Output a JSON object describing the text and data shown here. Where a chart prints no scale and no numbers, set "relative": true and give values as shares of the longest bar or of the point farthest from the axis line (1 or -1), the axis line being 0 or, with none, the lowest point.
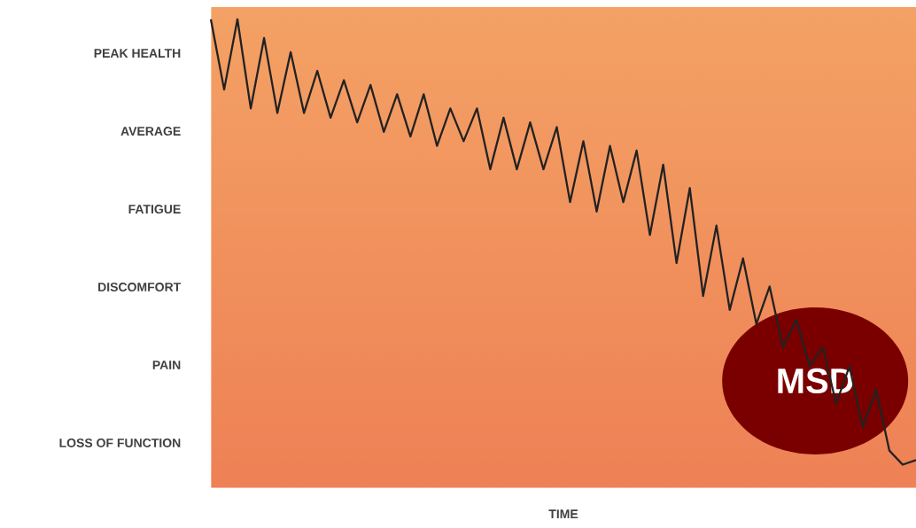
{
  "chart_data": {
    "type": "line",
    "xlabel": "TIME",
    "relative": true,
    "categories": [
      null,
      null,
      null,
      null,
      null,
      null,
      null,
      null,
      null,
      null,
      null,
      null,
      null,
      null,
      null,
      null,
      null,
      null,
      null,
      null,
      null,
      null,
      null,
      null,
      null,
      null,
      null,
      null,
      null,
      null,
      null,
      null,
      null,
      null,
      null,
      null,
      null,
      null,
      null,
      null,
      null,
      null,
      null,
      null,
      null,
      null,
      null,
      null,
      null,
      null,
      null,
      null,
      null,
      null
    ],
    "values": [
      1,
      0.85,
      1,
      0.81,
      0.96,
      0.8,
      0.93,
      0.8,
      0.89,
      0.79,
      0.87,
      0.78,
      0.86,
      0.76,
      0.84,
      0.75,
      0.84,
      0.73,
      0.81,
      0.74,
      0.81,
      0.68,
      0.79,
      0.68,
      0.78,
      0.68,
      0.77,
      0.61,
      0.74,
      0.59,
      0.73,
      0.61,
      0.72,
      0.54,
      0.69,
      0.48,
      0.64,
      0.41,
      0.56,
      0.38,
      0.49,
      0.35,
      0.43,
      0.3,
      0.36,
      0.26,
      0.3,
      0.18,
      0.26,
      0.13,
      0.21,
      0.08,
      0.05,
      0.06
    ],
    "color": "#222222",
    "marker": "none",
    "line_style": "solid",
    "annotations": [
      "PEAK HEALTH",
      "AVERAGE",
      "FATIGUE",
      "DISCOMFORT",
      "PAIN",
      "LOSS OF FUNCTION",
      "MSD"
    ]
  }
}
